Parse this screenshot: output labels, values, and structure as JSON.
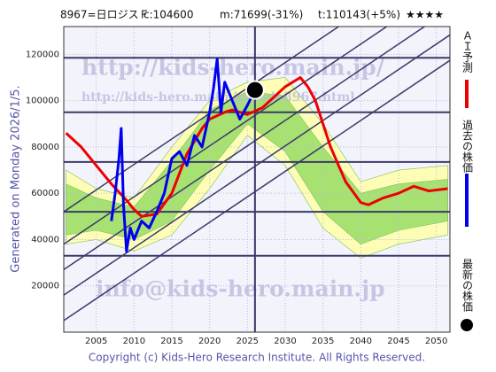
{
  "chart_data": {
    "type": "line",
    "header": [
      "8967=日ロジスＦ",
      "c:104600",
      "m:71699(-31%)",
      "t:110143(+5%)",
      "★★★★"
    ],
    "side_label": "Generated on Monday 2026/1/5.",
    "footer": "Copyright (c) Kids-Hero Research Institute. All Rights Reserved.",
    "watermarks": [
      "http://kids-hero.main.jp/",
      "http://kids-hero.main.jp/code8967.html",
      "info@kids-hero.main.jp"
    ],
    "xlim": [
      2000.7,
      2051.8
    ],
    "ylim": [
      0,
      132000
    ],
    "xticks": [
      2005,
      2010,
      2015,
      2020,
      2025,
      2030,
      2035,
      2040,
      2045,
      2050
    ],
    "yticks": [
      20000,
      40000,
      60000,
      80000,
      100000,
      120000
    ],
    "bands": [
      {
        "color": "#ffffaa",
        "x": [
          2001,
          2005,
          2010,
          2015,
          2020,
          2025,
          2030,
          2035,
          2040,
          2045,
          2051.5
        ],
        "upper": [
          70000,
          62000,
          58000,
          80000,
          100000,
          108000,
          110000,
          90000,
          65000,
          70000,
          72000
        ],
        "lower": [
          38000,
          40000,
          35000,
          42000,
          62000,
          85000,
          72000,
          45000,
          32000,
          38000,
          42000
        ]
      },
      {
        "color": "#99dd66",
        "x": [
          2001,
          2005,
          2010,
          2015,
          2020,
          2025,
          2030,
          2035,
          2040,
          2045,
          2051.5
        ],
        "upper": [
          64000,
          58000,
          54000,
          74000,
          96000,
          104000,
          102000,
          80000,
          60000,
          64000,
          66000
        ],
        "lower": [
          42000,
          44000,
          40000,
          48000,
          70000,
          90000,
          78000,
          52000,
          38000,
          44000,
          48000
        ]
      }
    ],
    "trend_lines": [
      {
        "x": [
          2000.7,
          2051.8
        ],
        "y": [
          5000,
          117400
        ]
      },
      {
        "x": [
          2000.7,
          2051.8
        ],
        "y": [
          16000,
          128400
        ]
      },
      {
        "x": [
          2000.7,
          2051.8
        ],
        "y": [
          27000,
          139400
        ]
      },
      {
        "x": [
          2000.7,
          2051.8
        ],
        "y": [
          38000,
          150400
        ]
      },
      {
        "x": [
          2000.7,
          2051.8
        ],
        "y": [
          52000,
          164400
        ]
      }
    ],
    "hlines": [
      118500,
      95000,
      73500,
      52000,
      33000
    ],
    "vline": 2026,
    "series": [
      {
        "name": "ＡＩ予測",
        "color": "#ee0000",
        "x": [
          2001,
          2003,
          2005,
          2007,
          2009,
          2010,
          2011,
          2013,
          2015,
          2017,
          2019,
          2020,
          2022,
          2023,
          2025,
          2027,
          2028,
          2030,
          2032,
          2033,
          2034,
          2036,
          2038,
          2040,
          2041,
          2043,
          2045,
          2047,
          2049,
          2051.5
        ],
        "values": [
          86000,
          80000,
          72000,
          64000,
          57000,
          53000,
          50000,
          51000,
          60000,
          77000,
          88000,
          92000,
          95000,
          96000,
          94000,
          97000,
          100000,
          106000,
          110000,
          106000,
          100000,
          80000,
          65000,
          56000,
          55000,
          58000,
          60000,
          63000,
          61000,
          62000
        ]
      },
      {
        "name": "過去の株価",
        "color": "#0000ee",
        "x": [
          2007,
          2007.5,
          2008,
          2008.3,
          2008.6,
          2009,
          2009.5,
          2010,
          2011,
          2012,
          2013,
          2014,
          2015,
          2016,
          2017,
          2018,
          2019,
          2020,
          2020.5,
          2021,
          2021.5,
          2022,
          2023,
          2024,
          2025,
          2026
        ],
        "values": [
          48000,
          60000,
          75000,
          88000,
          55000,
          35000,
          45000,
          40000,
          48000,
          45000,
          52000,
          60000,
          75000,
          78000,
          72000,
          85000,
          80000,
          95000,
          105000,
          118000,
          95000,
          108000,
          100000,
          92000,
          98000,
          104600
        ]
      },
      {
        "name": "最新の株価",
        "color": "#000000",
        "x": [
          2026
        ],
        "values": [
          104600
        ]
      }
    ]
  }
}
